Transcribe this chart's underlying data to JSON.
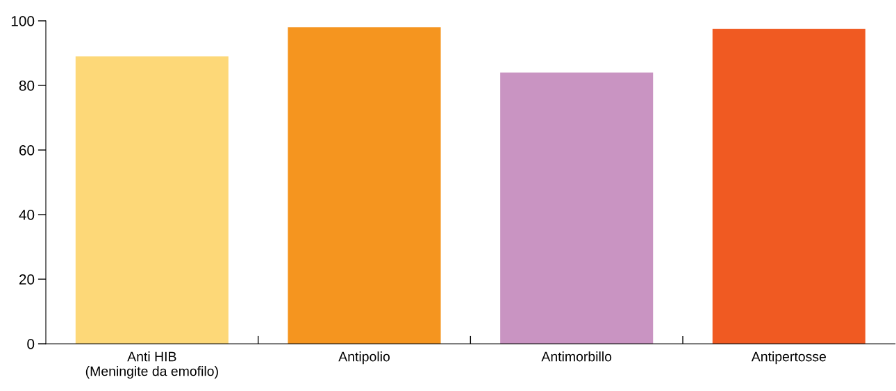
{
  "chart_data": {
    "type": "bar",
    "categories": [
      "Anti HIB\n(Meningite da emofilo)",
      "Antipolio",
      "Antimorbillo",
      "Antipertosse"
    ],
    "values": [
      89,
      98,
      84,
      97.5
    ],
    "colors": [
      "#fdd878",
      "#f5951f",
      "#c994c2",
      "#f05a22"
    ],
    "ylim": [
      0,
      100
    ],
    "yticks": [
      0,
      20,
      40,
      60,
      80,
      100
    ],
    "grid": false,
    "legend": false
  }
}
